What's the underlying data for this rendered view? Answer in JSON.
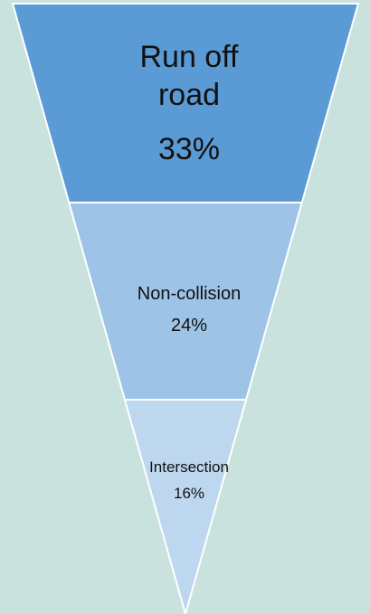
{
  "chart_data": {
    "type": "funnel",
    "categories": [
      "Run off road",
      "Non-collision",
      "Intersection"
    ],
    "values": [
      33,
      24,
      16
    ],
    "value_labels": [
      "33%",
      "24%",
      "16%"
    ],
    "colors": [
      "#5b9bd5",
      "#9dc3e6",
      "#bdd7ee"
    ]
  }
}
